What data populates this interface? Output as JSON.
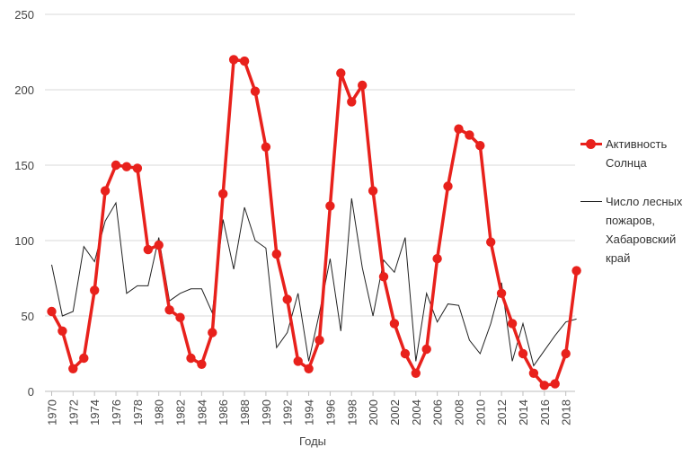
{
  "chart_data": {
    "type": "line",
    "title": "",
    "xlabel": "Годы",
    "ylabel": "",
    "ylim": [
      0,
      250
    ],
    "yticks": [
      0,
      50,
      100,
      150,
      200,
      250
    ],
    "xtick_labels": [
      "1970",
      "1972",
      "1974",
      "1976",
      "1978",
      "1980",
      "1982",
      "1984",
      "1986",
      "1988",
      "1990",
      "1992",
      "1994",
      "1996",
      "1998",
      "2000",
      "2002",
      "2004",
      "2006",
      "2008",
      "2010",
      "2012",
      "2014",
      "2016",
      "2018"
    ],
    "x": [
      1970,
      1971,
      1972,
      1973,
      1974,
      1975,
      1976,
      1977,
      1978,
      1979,
      1980,
      1981,
      1982,
      1983,
      1984,
      1985,
      1986,
      1987,
      1988,
      1989,
      1990,
      1991,
      1992,
      1993,
      1994,
      1995,
      1996,
      1997,
      1998,
      1999,
      2000,
      2001,
      2002,
      2003,
      2004,
      2005,
      2006,
      2007,
      2008,
      2009,
      2010,
      2011,
      2012,
      2013,
      2014,
      2015,
      2016,
      2017,
      2018,
      2019
    ],
    "grid": "horizontal",
    "legend_position": "right",
    "series": [
      {
        "name": "Активность Солнца",
        "color": "#e8211c",
        "marker": "circle",
        "values": [
          53,
          40,
          15,
          22,
          67,
          133,
          150,
          149,
          148,
          94,
          97,
          54,
          49,
          22,
          18,
          39,
          131,
          220,
          219,
          199,
          162,
          91,
          61,
          20,
          15,
          34,
          123,
          211,
          192,
          203,
          133,
          76,
          45,
          25,
          12,
          28,
          88,
          136,
          174,
          170,
          163,
          99,
          65,
          45,
          25,
          12,
          4,
          5,
          25,
          80
        ]
      },
      {
        "name": "Число лесных пожаров, Хабаровский край",
        "color": "#222222",
        "marker": "none",
        "values": [
          84,
          50,
          53,
          96,
          86,
          113,
          125,
          65,
          70,
          70,
          102,
          60,
          65,
          68,
          68,
          52,
          114,
          81,
          122,
          100,
          95,
          29,
          39,
          65,
          20,
          52,
          88,
          40,
          128,
          82,
          50,
          87,
          79,
          102,
          20,
          65,
          46,
          58,
          57,
          34,
          25,
          45,
          72,
          20,
          45,
          17,
          27,
          37,
          46,
          48
        ]
      }
    ]
  }
}
